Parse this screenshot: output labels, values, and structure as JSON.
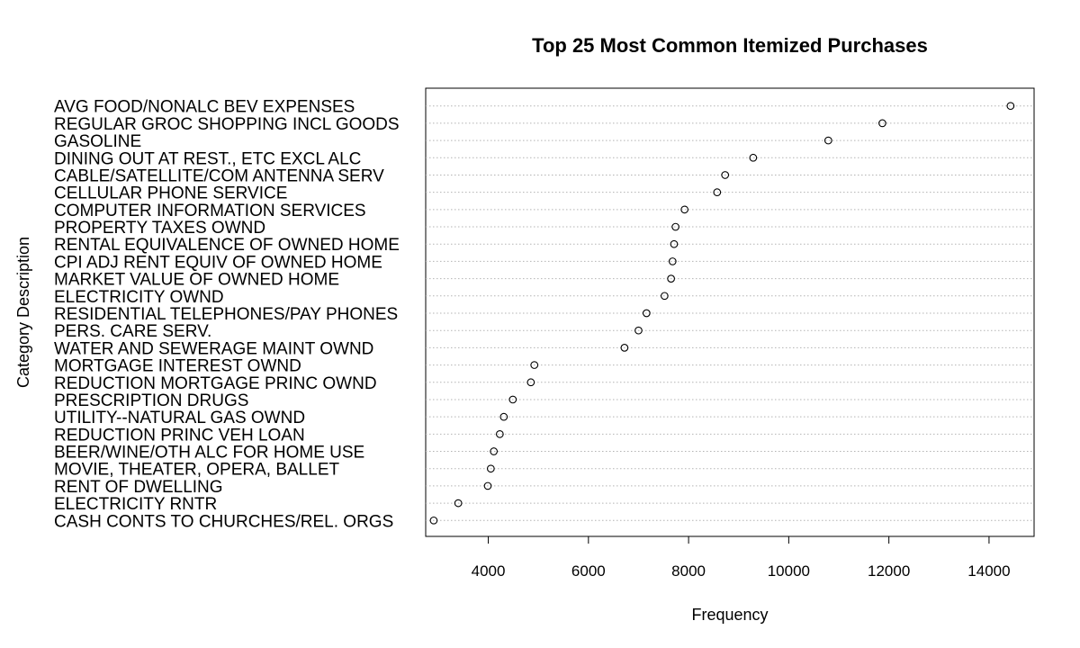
{
  "chart_data": {
    "type": "scatter",
    "title": "Top 25 Most Common Itemized Purchases",
    "xlabel": "Frequency",
    "ylabel": "Category Description",
    "xlim": [
      2750,
      14900
    ],
    "xticks": [
      "4000",
      "6000",
      "8000",
      "10000",
      "12000",
      "14000"
    ],
    "grid": "horizontal dotted",
    "categories": [
      "AVG FOOD/NONALC BEV EXPENSES",
      "REGULAR GROC SHOPPING INCL GOODS",
      "GASOLINE",
      "DINING OUT AT REST., ETC EXCL ALC",
      "CABLE/SATELLITE/COM ANTENNA SERV",
      "CELLULAR PHONE SERVICE",
      "COMPUTER INFORMATION SERVICES",
      "PROPERTY TAXES OWND",
      "RENTAL EQUIVALENCE OF OWNED HOME",
      "CPI ADJ RENT EQUIV OF OWNED HOME",
      "MARKET VALUE OF OWNED HOME",
      "ELECTRICITY OWND",
      "RESIDENTIAL TELEPHONES/PAY PHONES",
      "PERS. CARE SERV.",
      "WATER AND SEWERAGE MAINT OWND",
      "MORTGAGE INTEREST OWND",
      "REDUCTION MORTGAGE PRINC OWND",
      "PRESCRIPTION DRUGS",
      "UTILITY--NATURAL GAS OWND",
      "REDUCTION PRINC VEH LOAN",
      "BEER/WINE/OTH ALC FOR HOME USE",
      "MOVIE, THEATER, OPERA, BALLET",
      "RENT OF DWELLING",
      "ELECTRICITY RNTR",
      "CASH CONTS TO CHURCHES/REL. ORGS"
    ],
    "values": [
      14430,
      11870,
      10790,
      9290,
      8730,
      8570,
      7920,
      7740,
      7710,
      7680,
      7650,
      7520,
      7160,
      7000,
      6720,
      4920,
      4850,
      4490,
      4310,
      4230,
      4110,
      4050,
      3990,
      3400,
      2910
    ]
  }
}
